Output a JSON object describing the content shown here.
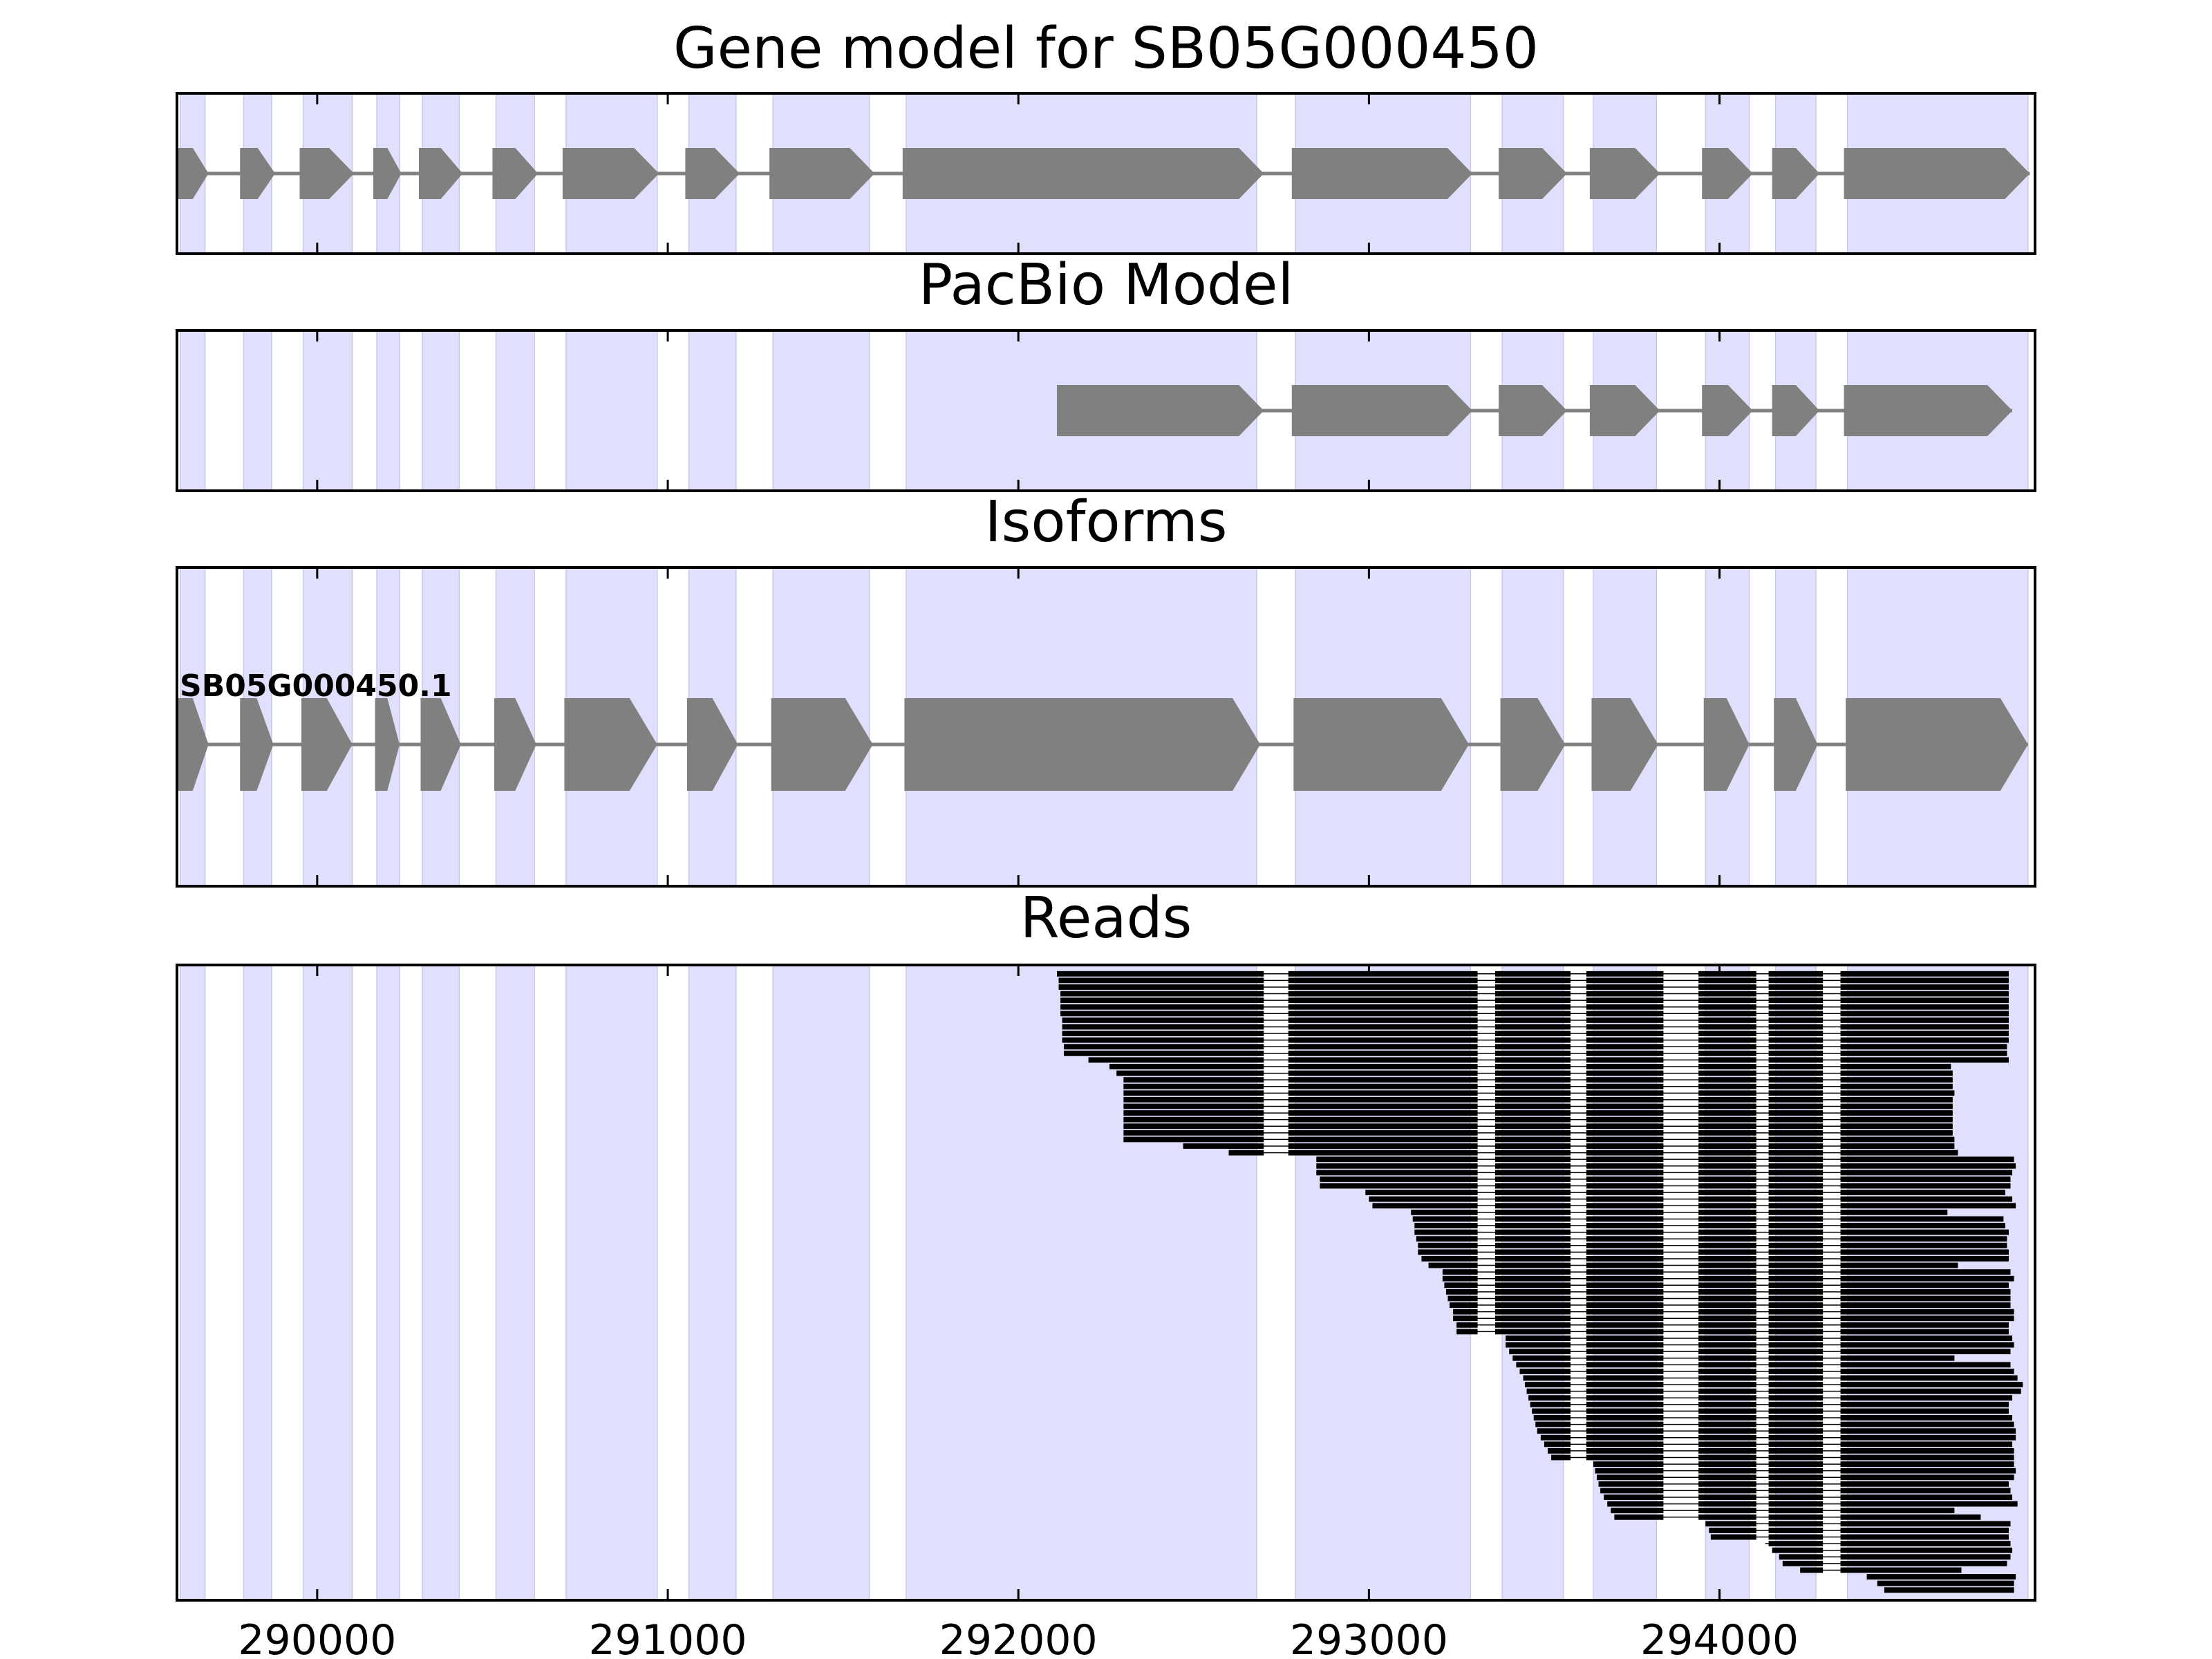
{
  "chart_data": {
    "type": "gene-track",
    "xlim": [
      289600,
      294900
    ],
    "x_ticks": [
      290000,
      291000,
      292000,
      293000,
      294000
    ],
    "x_tick_labels": [
      "290000",
      "291000",
      "292000",
      "293000",
      "294000"
    ],
    "colors": {
      "exon_band": "#e0e0fc",
      "exon_band_edge": "#c8c8ee",
      "feature": "#808080",
      "read": "#000000",
      "frame": "#000000"
    },
    "exon_bands": [
      [
        289610,
        289680
      ],
      [
        289790,
        289870
      ],
      [
        289960,
        290100
      ],
      [
        290170,
        290235
      ],
      [
        290300,
        290405
      ],
      [
        290510,
        290620
      ],
      [
        290710,
        290970
      ],
      [
        291060,
        291195
      ],
      [
        291300,
        291575
      ],
      [
        291680,
        292680
      ],
      [
        292790,
        293290
      ],
      [
        293380,
        293555
      ],
      [
        293640,
        293820
      ],
      [
        293960,
        294085
      ],
      [
        294160,
        294275
      ],
      [
        294365,
        294880
      ]
    ],
    "panels": [
      {
        "title": "Gene model for SB05G000450",
        "kind": "model",
        "exons": [
          [
            289600,
            289690
          ],
          [
            289780,
            289880
          ],
          [
            289950,
            290105
          ],
          [
            290160,
            290240
          ],
          [
            290290,
            290415
          ],
          [
            290500,
            290630
          ],
          [
            290700,
            290975
          ],
          [
            291050,
            291205
          ],
          [
            291290,
            291590
          ],
          [
            291670,
            292700
          ],
          [
            292780,
            293295
          ],
          [
            293370,
            293565
          ],
          [
            293630,
            293830
          ],
          [
            293950,
            294095
          ],
          [
            294150,
            294285
          ],
          [
            294355,
            294885
          ]
        ]
      },
      {
        "title": "PacBio Model",
        "kind": "model",
        "exons": [
          [
            292110,
            292700
          ],
          [
            292780,
            293295
          ],
          [
            293370,
            293565
          ],
          [
            293630,
            293830
          ],
          [
            293950,
            294095
          ],
          [
            294150,
            294285
          ],
          [
            294355,
            294835
          ]
        ]
      },
      {
        "title": "Isoforms",
        "kind": "isoforms",
        "isoforms": [
          {
            "label": "SB05G000450.1",
            "exons": [
              [
                289600,
                289690
              ],
              [
                289780,
                289875
              ],
              [
                289955,
                290100
              ],
              [
                290165,
                290235
              ],
              [
                290295,
                290410
              ],
              [
                290505,
                290625
              ],
              [
                290705,
                290970
              ],
              [
                291055,
                291200
              ],
              [
                291295,
                291585
              ],
              [
                291675,
                292690
              ],
              [
                292785,
                293285
              ],
              [
                293375,
                293560
              ],
              [
                293635,
                293825
              ],
              [
                293955,
                294085
              ],
              [
                294155,
                294280
              ],
              [
                294360,
                294880
              ]
            ]
          }
        ]
      },
      {
        "title": "Reads",
        "kind": "reads",
        "reads": [
          [
            292110,
            294825
          ],
          [
            292115,
            294825
          ],
          [
            292115,
            294825
          ],
          [
            292120,
            294825
          ],
          [
            292120,
            294825
          ],
          [
            292120,
            294825
          ],
          [
            292120,
            294825
          ],
          [
            292125,
            294825
          ],
          [
            292125,
            294825
          ],
          [
            292125,
            294825
          ],
          [
            292125,
            294825
          ],
          [
            292130,
            294820
          ],
          [
            292130,
            294820
          ],
          [
            292200,
            294825
          ],
          [
            292260,
            294660
          ],
          [
            292280,
            294665
          ],
          [
            292300,
            294665
          ],
          [
            292300,
            294665
          ],
          [
            292300,
            294670
          ],
          [
            292300,
            294665
          ],
          [
            292300,
            294665
          ],
          [
            292300,
            294665
          ],
          [
            292300,
            294665
          ],
          [
            292300,
            294665
          ],
          [
            292300,
            294665
          ],
          [
            292300,
            294670
          ],
          [
            292470,
            294670
          ],
          [
            292600,
            294680
          ],
          [
            292850,
            294840
          ],
          [
            292850,
            294845
          ],
          [
            292850,
            294835
          ],
          [
            292860,
            294830
          ],
          [
            292860,
            294830
          ],
          [
            292990,
            294815
          ],
          [
            293000,
            294835
          ],
          [
            293010,
            294845
          ],
          [
            293120,
            294650
          ],
          [
            293125,
            294810
          ],
          [
            293130,
            294815
          ],
          [
            293130,
            294825
          ],
          [
            293135,
            294820
          ],
          [
            293140,
            294820
          ],
          [
            293140,
            294825
          ],
          [
            293150,
            294825
          ],
          [
            293170,
            294680
          ],
          [
            293210,
            294830
          ],
          [
            293210,
            294840
          ],
          [
            293215,
            294825
          ],
          [
            293220,
            294830
          ],
          [
            293225,
            294830
          ],
          [
            293230,
            294830
          ],
          [
            293240,
            294840
          ],
          [
            293240,
            294840
          ],
          [
            293250,
            294825
          ],
          [
            293250,
            294825
          ],
          [
            293390,
            294835
          ],
          [
            293390,
            294840
          ],
          [
            293400,
            294830
          ],
          [
            293410,
            294670
          ],
          [
            293420,
            294830
          ],
          [
            293430,
            294840
          ],
          [
            293440,
            294850
          ],
          [
            293445,
            294865
          ],
          [
            293450,
            294860
          ],
          [
            293455,
            294835
          ],
          [
            293460,
            294825
          ],
          [
            293465,
            294825
          ],
          [
            293470,
            294835
          ],
          [
            293475,
            294840
          ],
          [
            293480,
            294845
          ],
          [
            293490,
            294845
          ],
          [
            293500,
            294835
          ],
          [
            293510,
            294840
          ],
          [
            293520,
            294840
          ],
          [
            293640,
            294840
          ],
          [
            293645,
            294845
          ],
          [
            293650,
            294840
          ],
          [
            293655,
            294825
          ],
          [
            293660,
            294830
          ],
          [
            293670,
            294835
          ],
          [
            293680,
            294850
          ],
          [
            293690,
            294670
          ],
          [
            293700,
            294745
          ],
          [
            293960,
            294830
          ],
          [
            293970,
            294825
          ],
          [
            293975,
            294825
          ],
          [
            294130,
            294830
          ],
          [
            294150,
            294835
          ],
          [
            294170,
            294830
          ],
          [
            294180,
            294820
          ],
          [
            294230,
            294690
          ],
          [
            294420,
            294845
          ],
          [
            294450,
            294840
          ],
          [
            294470,
            294840
          ]
        ]
      }
    ]
  }
}
